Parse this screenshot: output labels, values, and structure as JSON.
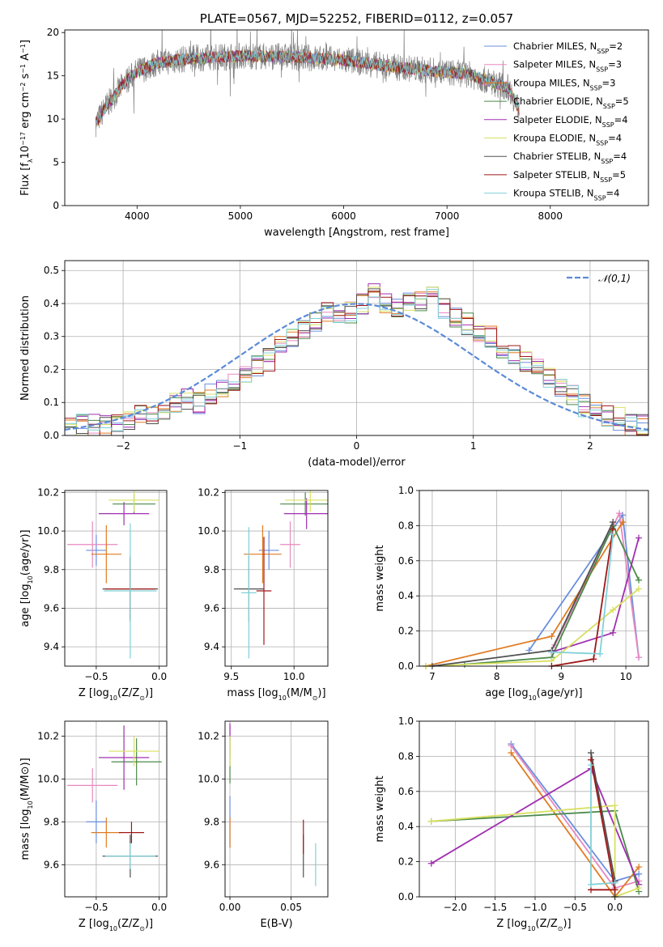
{
  "colors": {
    "series": [
      "#6a8fdc",
      "#e888c0",
      "#e07b22",
      "#4a8a4a",
      "#a030b0",
      "#d8e060",
      "#505050",
      "#a01818",
      "#80d0d8"
    ],
    "spectrum": "#808080",
    "gaussian": "#5b8ad8",
    "grid": "#b0b0b0"
  },
  "series_labels": [
    {
      "base": "Chabrier MILES, N",
      "sub": "SSP",
      "tail": "=2"
    },
    {
      "base": "Salpeter MILES, N",
      "sub": "SSP",
      "tail": "=3"
    },
    {
      "base": "Kroupa MILES, N",
      "sub": "SSP",
      "tail": "=3"
    },
    {
      "base": "Chabrier ELODIE, N",
      "sub": "SSP",
      "tail": "=5"
    },
    {
      "base": "Salpeter ELODIE, N",
      "sub": "SSP",
      "tail": "=4"
    },
    {
      "base": "Kroupa ELODIE, N",
      "sub": "SSP",
      "tail": "=4"
    },
    {
      "base": "Chabrier STELIB, N",
      "sub": "SSP",
      "tail": "=4"
    },
    {
      "base": "Salpeter STELIB, N",
      "sub": "SSP",
      "tail": "=5"
    },
    {
      "base": "Kroupa STELIB, N",
      "sub": "SSP",
      "tail": "=4"
    }
  ],
  "chart_data": [
    {
      "id": "spectrum",
      "type": "line",
      "title": "PLATE=0567, MJD=52252, FIBERID=0112, z=0.057",
      "xlabel": "wavelength [Angstrom, rest frame]",
      "ylabel": {
        "base": "Flux [f",
        "sub": "λ",
        "mid": "10",
        "sup": "−17",
        "tail": " erg cm",
        "sup2": "−2",
        "tail2": " s",
        "sup3": "−1",
        "tail3": " A",
        "sup4": "−1",
        "end": "]"
      },
      "xlim": [
        3300,
        8950
      ],
      "ylim": [
        0,
        20.3
      ],
      "xticks": [
        4000,
        5000,
        6000,
        7000,
        8000
      ],
      "yticks": [
        0,
        5,
        10,
        15,
        20
      ],
      "continuum": {
        "x": [
          3600,
          3700,
          3800,
          3900,
          4000,
          4200,
          4500,
          5000,
          5500,
          6000,
          6500,
          7000,
          7200,
          7400,
          7600,
          7700
        ],
        "y": [
          9.5,
          11.5,
          13.0,
          14.5,
          15.5,
          16.5,
          17.0,
          17.3,
          17.2,
          16.8,
          16.0,
          15.4,
          15.2,
          14.4,
          13.6,
          11.0
        ]
      },
      "grid": false,
      "legend": "top-right"
    },
    {
      "id": "residuals",
      "type": "bar",
      "xlabel": "(data-model)/error",
      "ylabel": "Normed distribution",
      "xlim": [
        -2.5,
        2.5
      ],
      "ylim": [
        0,
        0.53
      ],
      "xticks": [
        -2,
        -1,
        0,
        1,
        2
      ],
      "yticks": [
        0.0,
        0.1,
        0.2,
        0.3,
        0.4,
        0.5
      ],
      "gaussian_label": "𝒩(0,1)",
      "bin_width": 0.1,
      "bins_from": -2.5,
      "histogram_template": [
        0.02,
        0.03,
        0.03,
        0.03,
        0.04,
        0.04,
        0.06,
        0.07,
        0.08,
        0.1,
        0.11,
        0.1,
        0.13,
        0.15,
        0.16,
        0.19,
        0.21,
        0.23,
        0.27,
        0.3,
        0.32,
        0.34,
        0.37,
        0.36,
        0.37,
        0.4,
        0.45,
        0.4,
        0.38,
        0.4,
        0.41,
        0.42,
        0.38,
        0.36,
        0.34,
        0.32,
        0.3,
        0.27,
        0.24,
        0.22,
        0.2,
        0.17,
        0.14,
        0.12,
        0.09,
        0.08,
        0.06,
        0.05,
        0.03,
        0.03
      ],
      "grid": true,
      "legend": "top-right"
    },
    {
      "id": "age-vs-Z",
      "type": "scatter",
      "xlabel": {
        "base": "Z [log",
        "sub": "10",
        "mid": "(Z/Z",
        "sub2": "⊙",
        "end": ")]"
      },
      "ylabel": {
        "base": "age  [log",
        "sub": "10",
        "end": "(age/yr)]"
      },
      "xlim": [
        -0.75,
        0.06
      ],
      "ylim": [
        9.3,
        10.21
      ],
      "xticks": [
        -0.5,
        0.0
      ],
      "yticks": [
        9.4,
        9.6,
        9.8,
        10.0,
        10.2
      ],
      "points": [
        {
          "x": -0.5,
          "y": 9.9,
          "xerr": 0.08,
          "yerr": 0.08
        },
        {
          "x": -0.53,
          "y": 9.93,
          "xerr": 0.2,
          "yerr": 0.12
        },
        {
          "x": -0.42,
          "y": 9.88,
          "xerr": 0.12,
          "yerr": 0.15
        },
        {
          "x": -0.2,
          "y": 10.14,
          "xerr": 0.17,
          "yerr": 0.05
        },
        {
          "x": -0.28,
          "y": 10.09,
          "xerr": 0.2,
          "yerr": 0.06
        },
        {
          "x": -0.2,
          "y": 10.16,
          "xerr": 0.2,
          "yerr": 0.06
        },
        {
          "x": -0.23,
          "y": 9.7,
          "xerr": 0.22,
          "yerr": 0.17
        },
        {
          "x": -0.23,
          "y": 9.7,
          "xerr": 0.2,
          "yerr": 0.16
        },
        {
          "x": -0.23,
          "y": 9.69,
          "xerr": 0.21,
          "yerr": 0.35
        }
      ],
      "grid": true
    },
    {
      "id": "age-vs-mass",
      "type": "scatter",
      "xlabel": {
        "base": "mass [log",
        "sub": "10",
        "mid": "(M/M",
        "sub2": "⊙",
        "end": ")]"
      },
      "ylabel": "",
      "xlim": [
        9.45,
        10.27
      ],
      "ylim": [
        9.3,
        10.21
      ],
      "xticks": [
        9.5,
        10.0
      ],
      "yticks": [
        9.4,
        9.6,
        9.8,
        10.0,
        10.2
      ],
      "points": [
        {
          "x": 9.8,
          "y": 9.9,
          "xerr": 0.08,
          "yerr": 0.1
        },
        {
          "x": 9.97,
          "y": 9.93,
          "xerr": 0.08,
          "yerr": 0.12
        },
        {
          "x": 9.75,
          "y": 9.88,
          "xerr": 0.15,
          "yerr": 0.15
        },
        {
          "x": 10.09,
          "y": 10.14,
          "xerr": 0.2,
          "yerr": 0.06
        },
        {
          "x": 10.1,
          "y": 10.09,
          "xerr": 0.18,
          "yerr": 0.08
        },
        {
          "x": 10.13,
          "y": 10.16,
          "xerr": 0.2,
          "yerr": 0.06
        },
        {
          "x": 9.64,
          "y": 9.7,
          "xerr": 0.12,
          "yerr": 0.17
        },
        {
          "x": 9.76,
          "y": 9.69,
          "xerr": 0.06,
          "yerr": 0.28
        },
        {
          "x": 9.64,
          "y": 9.68,
          "xerr": 0.06,
          "yerr": 0.34
        }
      ],
      "grid": true
    },
    {
      "id": "massweight-vs-age",
      "type": "line",
      "xlabel": {
        "base": "age  [log",
        "sub": "10",
        "end": "(age/yr)]"
      },
      "ylabel": "mass weight",
      "xlim": [
        6.8,
        10.35
      ],
      "ylim": [
        0,
        1
      ],
      "xticks": [
        7,
        8,
        9,
        10
      ],
      "yticks": [
        0.0,
        0.2,
        0.4,
        0.6,
        0.8,
        1.0
      ],
      "series": [
        {
          "x": [
            8.5,
            9.95,
            10.2
          ],
          "y": [
            0.09,
            0.86,
            0.05
          ]
        },
        {
          "x": [
            8.9,
            9.9,
            10.2
          ],
          "y": [
            0.12,
            0.87,
            0.05
          ]
        },
        {
          "x": [
            6.9,
            8.85,
            9.95
          ],
          "y": [
            0.0,
            0.17,
            0.82
          ]
        },
        {
          "x": [
            7.5,
            8.85,
            9.8,
            10.2
          ],
          "y": [
            0.01,
            0.05,
            0.8,
            0.49
          ]
        },
        {
          "x": [
            8.85,
            9.8,
            10.2
          ],
          "y": [
            0.08,
            0.19,
            0.73
          ]
        },
        {
          "x": [
            6.9,
            8.85,
            9.8,
            10.2
          ],
          "y": [
            0.0,
            0.03,
            0.32,
            0.44
          ]
        },
        {
          "x": [
            7.0,
            8.85,
            9.8
          ],
          "y": [
            0.0,
            0.09,
            0.82
          ]
        },
        {
          "x": [
            8.85,
            9.5,
            9.8
          ],
          "y": [
            0.0,
            0.04,
            0.78
          ]
        },
        {
          "x": [
            8.85,
            9.6,
            9.8
          ],
          "y": [
            0.08,
            0.07,
            0.75
          ]
        }
      ],
      "grid": true
    },
    {
      "id": "mass-vs-Z",
      "type": "scatter",
      "xlabel": {
        "base": "Z [log",
        "sub": "10",
        "mid": "(Z/Z",
        "sub2": "⊙",
        "end": ")]"
      },
      "ylabel": {
        "base": "mass [log",
        "sub": "10",
        "end": "(M/M⊙)]"
      },
      "xlim": [
        -0.75,
        0.06
      ],
      "ylim": [
        9.45,
        10.27
      ],
      "yticks": [
        9.6,
        9.8,
        10.0,
        10.2
      ],
      "xticks": [
        -0.5,
        0.0
      ],
      "points": [
        {
          "x": -0.5,
          "y": 9.8,
          "xerr": 0.08,
          "yerr": 0.1
        },
        {
          "x": -0.53,
          "y": 9.97,
          "xerr": 0.2,
          "yerr": 0.08
        },
        {
          "x": -0.42,
          "y": 9.75,
          "xerr": 0.12,
          "yerr": 0.07
        },
        {
          "x": -0.18,
          "y": 10.08,
          "xerr": 0.2,
          "yerr": 0.11
        },
        {
          "x": -0.28,
          "y": 10.1,
          "xerr": 0.2,
          "yerr": 0.15
        },
        {
          "x": -0.2,
          "y": 10.13,
          "xerr": 0.2,
          "yerr": 0.07
        },
        {
          "x": -0.23,
          "y": 9.64,
          "xerr": 0.22,
          "yerr": 0.1
        },
        {
          "x": -0.22,
          "y": 9.75,
          "xerr": 0.1,
          "yerr": 0.05
        },
        {
          "x": -0.23,
          "y": 9.64,
          "xerr": 0.2,
          "yerr": 0.06
        }
      ],
      "grid": true
    },
    {
      "id": "mass-vs-EBV",
      "type": "scatter",
      "xlabel": "E(B-V)",
      "ylabel": "",
      "xlim": [
        -0.004,
        0.08
      ],
      "ylim": [
        9.45,
        10.27
      ],
      "xticks": [
        0.0,
        0.05
      ],
      "yticks": [
        9.6,
        9.8,
        10.0,
        10.2
      ],
      "points": [
        {
          "x": 0.0,
          "y": 9.8,
          "xerr": 0.0,
          "yerr": 0.12
        },
        {
          "x": 0.0,
          "y": 10.18,
          "xerr": 0.0,
          "yerr": 0.07
        },
        {
          "x": 0.0,
          "y": 9.75,
          "xerr": 0.0,
          "yerr": 0.07
        },
        {
          "x": 0.0,
          "y": 10.08,
          "xerr": 0.0,
          "yerr": 0.1
        },
        {
          "x": 0.0,
          "y": 10.22,
          "xerr": 0.0,
          "yerr": 0.04
        },
        {
          "x": 0.0,
          "y": 10.13,
          "xerr": 0.0,
          "yerr": 0.07
        },
        {
          "x": 0.06,
          "y": 9.64,
          "xerr": 0.0,
          "yerr": 0.1
        },
        {
          "x": 0.06,
          "y": 9.73,
          "xerr": 0.0,
          "yerr": 0.08
        },
        {
          "x": 0.07,
          "y": 9.6,
          "xerr": 0.0,
          "yerr": 0.1
        }
      ],
      "grid": true
    },
    {
      "id": "massweight-vs-Z",
      "type": "line",
      "xlabel": {
        "base": "Z [log",
        "sub": "10",
        "mid": "(Z/Z",
        "sub2": "⊙",
        "end": ")]"
      },
      "ylabel": "mass weight",
      "xlim": [
        -2.45,
        0.42
      ],
      "ylim": [
        0,
        1
      ],
      "xticks": [
        -2.0,
        -1.5,
        -1.0,
        -0.5,
        0.0
      ],
      "yticks": [
        0.0,
        0.2,
        0.4,
        0.6,
        0.8,
        1.0
      ],
      "series": [
        {
          "x": [
            -1.3,
            0.0,
            0.3
          ],
          "y": [
            0.87,
            0.09,
            0.13
          ]
        },
        {
          "x": [
            -1.3,
            0.0,
            0.3
          ],
          "y": [
            0.86,
            0.05,
            0.09
          ]
        },
        {
          "x": [
            -1.3,
            0.0,
            0.3
          ],
          "y": [
            0.82,
            0.0,
            0.17
          ]
        },
        {
          "x": [
            -2.3,
            0.0,
            0.3
          ],
          "y": [
            0.43,
            0.49,
            0.03
          ]
        },
        {
          "x": [
            -2.3,
            -0.3,
            0.3
          ],
          "y": [
            0.19,
            0.73,
            0.07
          ]
        },
        {
          "x": [
            -2.3,
            0.0,
            0.0,
            0.3
          ],
          "y": [
            0.43,
            0.52,
            0.0,
            0.05
          ]
        },
        {
          "x": [
            -0.3,
            0.0,
            0.0
          ],
          "y": [
            0.82,
            0.09,
            0.0
          ]
        },
        {
          "x": [
            -0.3,
            0.0,
            -0.3
          ],
          "y": [
            0.78,
            0.04,
            0.04
          ]
        },
        {
          "x": [
            -0.3,
            -0.3,
            0.0
          ],
          "y": [
            0.75,
            0.07,
            0.08
          ]
        }
      ],
      "grid": true
    }
  ]
}
